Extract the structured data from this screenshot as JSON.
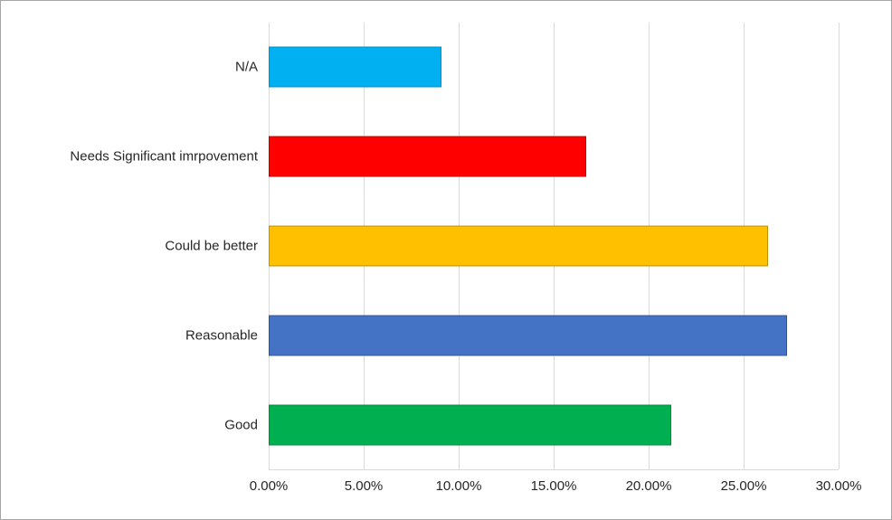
{
  "chart_data": {
    "type": "bar",
    "orientation": "horizontal",
    "title": "",
    "xlabel": "",
    "ylabel": "",
    "xlim": [
      0,
      30
    ],
    "grid": "vertical",
    "legend": "none",
    "categories": [
      "N/A",
      "Needs Significant imrpovement",
      "Could be better",
      "Reasonable",
      "Good"
    ],
    "values": [
      9.1,
      16.7,
      26.3,
      27.3,
      21.2
    ],
    "value_unit": "%",
    "bar_colors": [
      "#00B0F0",
      "#FF0000",
      "#FFC000",
      "#4472C4",
      "#00B050"
    ],
    "bar_border_colors": [
      "#0090C8",
      "#C00000",
      "#BF9000",
      "#2F5597",
      "#008A3E"
    ],
    "x_ticks": [
      0,
      5,
      10,
      15,
      20,
      25,
      30
    ],
    "x_tick_labels": [
      "0.00%",
      "5.00%",
      "10.00%",
      "15.00%",
      "20.00%",
      "25.00%",
      "30.00%"
    ]
  },
  "frame": {
    "border_color": "#A6A6A6",
    "background_color": "#FFFFFF",
    "gridline_color": "#D9D9D9"
  }
}
